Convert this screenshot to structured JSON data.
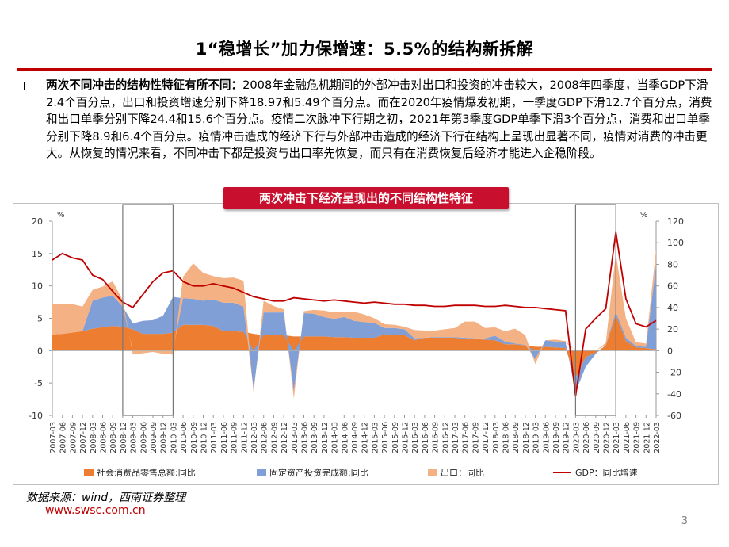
{
  "title": "1“稳增长”加力保增速：5.5%的结构新拆解",
  "paragraph": {
    "bold": "两次不同冲击的结构性特征有所不同：",
    "text": "2008年金融危机期间的外部冲击对出口和投资的冲击较大，2008年四季度，当季GDP下滑2.4个百分点，出口和投资增速分别下降18.97和5.49个百分点。而在2020年疫情爆发初期，一季度GDP下滑12.7个百分点，消费和出口单季分别下降24.4和15.6个百分点。疫情二次脉冲下行期之初，2021年第3季度GDP单季下滑3个百分点，消费和出口单季分别下降8.9和6.4个百分点。疫情冲击造成的经济下行与外部冲击造成的经济下行在结构上呈现出显著不同，疫情对消费的冲击更大。从恢复的情况来看，不同冲击下都是投资与出口率先恢复，而只有在消费恢复后经济才能进入企稳阶段。"
  },
  "chart_title": "两次冲击下经济呈现出的不同结构性特征",
  "source": "数据来源：wind，西南证券整理",
  "site": "www.swsc.com.cn",
  "page_number": "3",
  "chart_data": {
    "type": "area",
    "x": [
      "2007-03",
      "2007-06",
      "2007-09",
      "2007-12",
      "2008-03",
      "2008-06",
      "2008-09",
      "2008-12",
      "2009-03",
      "2009-06",
      "2009-09",
      "2009-12",
      "2010-03",
      "2010-06",
      "2010-09",
      "2010-12",
      "2011-03",
      "2011-06",
      "2011-09",
      "2011-12",
      "2012-03",
      "2012-06",
      "2012-09",
      "2012-12",
      "2013-03",
      "2013-06",
      "2013-09",
      "2013-12",
      "2014-03",
      "2014-06",
      "2014-09",
      "2014-12",
      "2015-03",
      "2015-06",
      "2015-09",
      "2015-12",
      "2016-03",
      "2016-06",
      "2016-09",
      "2016-12",
      "2017-03",
      "2017-06",
      "2017-09",
      "2017-12",
      "2018-03",
      "2018-06",
      "2018-09",
      "2018-12",
      "2019-03",
      "2019-06",
      "2019-09",
      "2019-12",
      "2020-03",
      "2020-06",
      "2020-09",
      "2020-12",
      "2021-03",
      "2021-06",
      "2021-09",
      "2021-12",
      "2022-03"
    ],
    "left_axis": {
      "unit": "%",
      "ylim": [
        -10,
        20
      ],
      "ticks": [
        -10,
        -5,
        0,
        5,
        10,
        15,
        20
      ]
    },
    "right_axis": {
      "unit": "%",
      "ylim": [
        -60,
        120
      ],
      "ticks": [
        -60,
        -40,
        -20,
        0,
        20,
        40,
        60,
        80,
        100,
        120
      ]
    },
    "series": [
      {
        "name": "社会消费品零售总额:同比",
        "type": "stacked-area",
        "axis": "left",
        "color": "#ed7d31",
        "values": [
          2.5,
          2.6,
          2.8,
          3.0,
          3.4,
          3.6,
          3.8,
          3.7,
          3.3,
          2.6,
          2.6,
          2.6,
          2.8,
          4.0,
          4.0,
          4.0,
          3.8,
          3.0,
          3.0,
          2.9,
          2.6,
          2.4,
          2.4,
          2.4,
          2.2,
          2.2,
          2.2,
          2.2,
          2.1,
          2.1,
          2.0,
          2.0,
          2.0,
          2.5,
          2.4,
          2.4,
          1.6,
          2.0,
          2.0,
          2.0,
          2.0,
          1.8,
          1.8,
          1.7,
          1.6,
          1.0,
          1.0,
          0.8,
          0.6,
          0.6,
          0.5,
          0.4,
          -4.2,
          -1.0,
          -0.3,
          0.8,
          5.5,
          1.5,
          0.5,
          0.4,
          0.2
        ]
      },
      {
        "name": "固定资产投资完成额:同比",
        "type": "stacked-area",
        "axis": "left",
        "color": "#7f9fd6",
        "values": [
          0.0,
          0.0,
          0.0,
          0.0,
          4.3,
          4.6,
          4.7,
          3.1,
          0.9,
          2.0,
          2.1,
          2.8,
          5.5,
          4.1,
          4.0,
          3.7,
          4.1,
          4.4,
          4.4,
          3.9,
          -6.0,
          3.5,
          3.5,
          3.5,
          -6.3,
          3.6,
          3.5,
          3.0,
          2.8,
          3.1,
          2.6,
          2.4,
          2.3,
          1.0,
          1.1,
          0.9,
          0.3,
          0.0,
          0.1,
          0.1,
          0.1,
          0.2,
          0.1,
          0.2,
          0.7,
          0.4,
          0.1,
          0.1,
          -1.3,
          1.0,
          0.9,
          0.9,
          -2.2,
          -1.5,
          -0.2,
          0.1,
          0.5,
          0.5,
          0.2,
          0.2,
          13.0
        ]
      },
      {
        "name": "出口：同比",
        "type": "stacked-area",
        "axis": "left",
        "color": "#f4b183",
        "values": [
          4.7,
          4.6,
          4.4,
          3.8,
          1.7,
          1.7,
          2.2,
          1.0,
          -0.6,
          -0.4,
          -0.2,
          -0.5,
          -0.6,
          3.3,
          5.5,
          4.3,
          3.6,
          3.8,
          3.9,
          4.0,
          -0.6,
          1.8,
          1.0,
          0.5,
          -1.1,
          0.3,
          0.6,
          1.0,
          1.0,
          0.8,
          1.4,
          1.2,
          0.7,
          0.6,
          0.5,
          0.4,
          1.3,
          1.1,
          1.0,
          1.2,
          1.4,
          2.5,
          2.6,
          1.6,
          1.3,
          1.6,
          2.3,
          1.5,
          -0.8,
          0.0,
          0.3,
          0.2,
          0.0,
          0.0,
          0.0,
          0.3,
          9.0,
          3.0,
          0.6,
          0.5,
          2.5
        ]
      },
      {
        "name": "GDP：同比增速",
        "type": "line",
        "axis": "right",
        "color": "#c00000",
        "values": [
          84,
          90,
          86,
          84,
          70,
          66,
          55,
          45,
          40,
          52,
          64,
          72,
          74,
          64,
          60,
          60,
          62,
          60,
          58,
          54,
          50,
          48,
          46,
          46,
          49,
          48,
          47,
          46,
          47,
          46,
          45,
          44,
          45,
          44,
          43,
          43,
          42,
          42,
          41,
          41,
          42,
          42,
          42,
          41,
          41,
          42,
          41,
          40,
          40,
          39,
          38,
          37,
          -42,
          20,
          30,
          39,
          110,
          48,
          25,
          22,
          28
        ]
      }
    ],
    "highlight_boxes": [
      {
        "from": "2008-12",
        "to": "2010-03"
      },
      {
        "from": "2020-03",
        "to": "2021-03"
      }
    ],
    "legend_placement": "bottom"
  }
}
